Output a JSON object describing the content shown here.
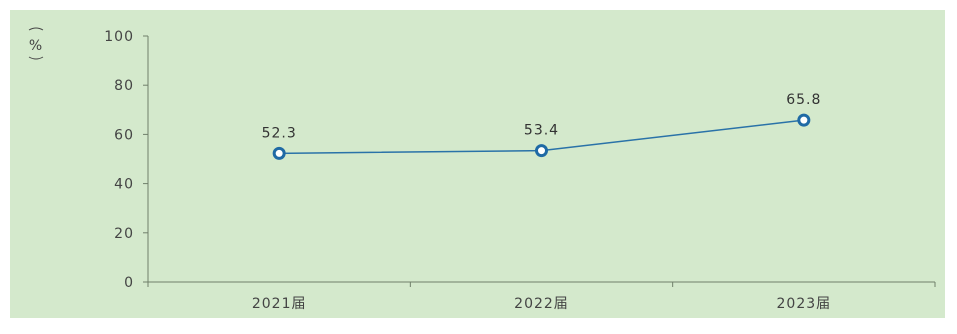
{
  "chart_data": {
    "type": "line",
    "ylabel": "%",
    "ylim": [
      0,
      100
    ],
    "yticks": [
      0,
      20,
      40,
      60,
      80,
      100
    ],
    "categories": [
      "2021届",
      "2022届",
      "2023届"
    ],
    "series": [
      {
        "values": [
          52.3,
          53.4,
          65.8
        ]
      }
    ],
    "data_labels": [
      "52.3",
      "53.4",
      "65.8"
    ],
    "colors": {
      "background": "#d4e9cc",
      "line": "#2a72a8",
      "marker": "#1f6aa5"
    },
    "grid": false
  }
}
